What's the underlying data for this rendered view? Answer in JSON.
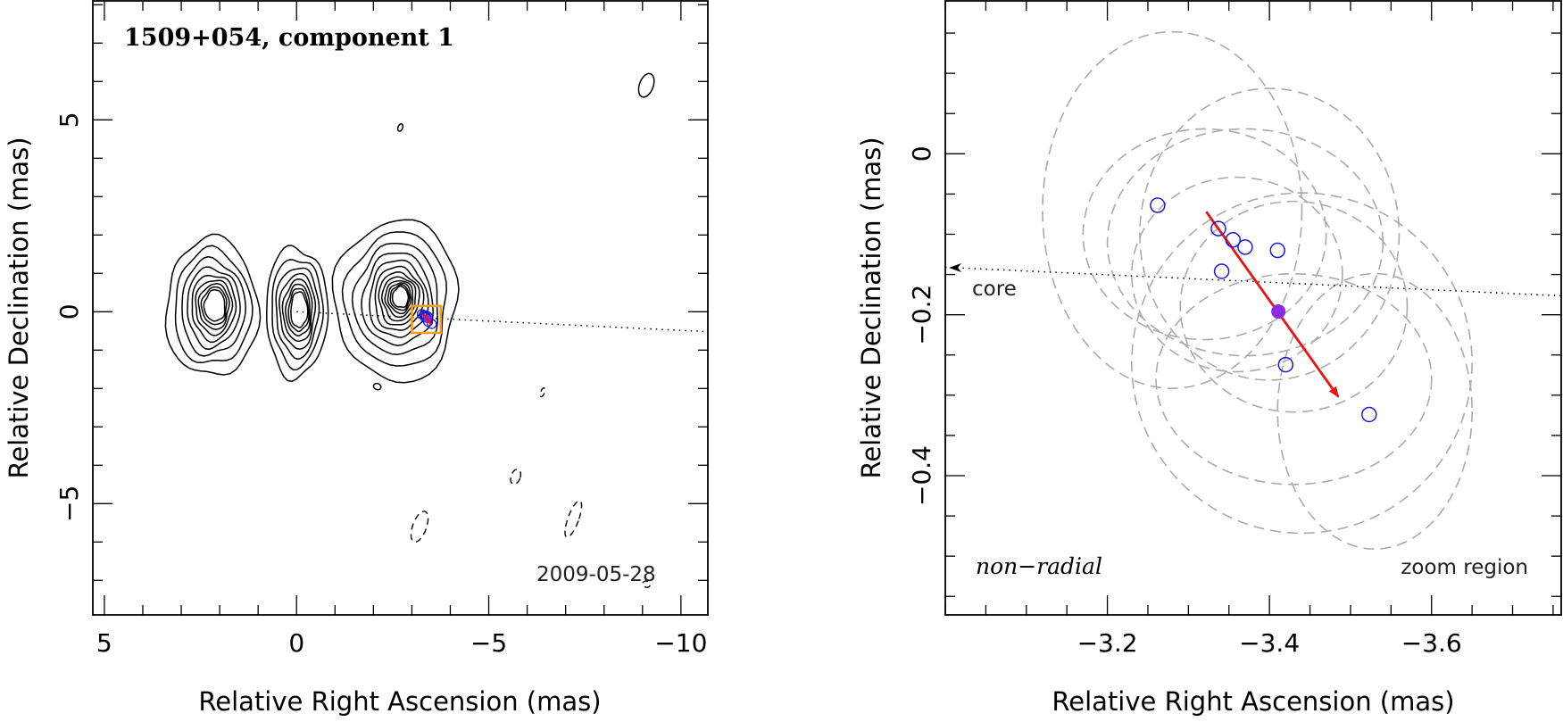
{
  "chart_data": [
    {
      "type": "contour",
      "title": "1509+054, component 1",
      "date": "2009-05-28",
      "xlabel": "Relative Right Ascension (mas)",
      "ylabel": "Relative Declination (mas)",
      "xlim": [
        5.3,
        -10.7
      ],
      "ylim": [
        -7.9,
        8.1
      ],
      "xticks": [
        5,
        0,
        -5,
        -10
      ],
      "xtick_labels": [
        "5",
        "0",
        "−5",
        "−10"
      ],
      "yticks": [
        -5,
        0,
        5
      ],
      "ytick_labels": [
        "−5",
        "0",
        "5"
      ],
      "x_minor_step": 1,
      "y_minor_step": 1,
      "contour_blobs": [
        {
          "name": "blob-left",
          "x": 2.2,
          "y": 0.1,
          "rx_max": 1.2,
          "ry_max": 1.8,
          "levels": 9
        },
        {
          "name": "blob-center",
          "x": 0.0,
          "y": 0.0,
          "rx_max": 0.8,
          "ry_max": 1.7,
          "levels": 8
        },
        {
          "name": "blob-right",
          "x": -2.6,
          "y": 0.3,
          "rx_max": 1.6,
          "ry_max": 2.1,
          "levels": 12
        }
      ],
      "small_contours": [
        {
          "x": -2.7,
          "y": 4.8,
          "rx": 0.06,
          "ry": 0.1,
          "dashed": false
        },
        {
          "x": -9.1,
          "y": 5.9,
          "rx": 0.18,
          "ry": 0.32,
          "dashed": false
        },
        {
          "x": -2.1,
          "y": -1.95,
          "rx": 0.1,
          "ry": 0.08,
          "dashed": false
        },
        {
          "x": -6.4,
          "y": -2.1,
          "rx": 0.05,
          "ry": 0.12,
          "dashed": true
        },
        {
          "x": -5.7,
          "y": -4.3,
          "rx": 0.12,
          "ry": 0.2,
          "dashed": true
        },
        {
          "x": -3.2,
          "y": -5.6,
          "rx": 0.18,
          "ry": 0.42,
          "dashed": true
        },
        {
          "x": -7.2,
          "y": -5.4,
          "rx": 0.14,
          "ry": 0.5,
          "dashed": true
        },
        {
          "x": -9.1,
          "y": -7.1,
          "rx": 0.1,
          "ry": 0.08,
          "dashed": true
        }
      ],
      "core_direction_line": {
        "from": [
          0,
          0
        ],
        "to": [
          -10.7,
          -0.52
        ]
      },
      "zoom_box": {
        "x": [
          -3.0,
          -3.75
        ],
        "y": [
          0.15,
          -0.55
        ]
      },
      "component_positions_mas": [
        {
          "x": -3.26,
          "y": -0.06
        },
        {
          "x": -3.33,
          "y": -0.09
        },
        {
          "x": -3.36,
          "y": -0.11
        },
        {
          "x": -3.37,
          "y": -0.12
        },
        {
          "x": -3.41,
          "y": -0.12
        },
        {
          "x": -3.34,
          "y": -0.15
        },
        {
          "x": -3.42,
          "y": -0.26
        },
        {
          "x": -3.52,
          "y": -0.32
        }
      ],
      "mean_position_mas": {
        "x": -3.41,
        "y": -0.2
      }
    },
    {
      "type": "scatter",
      "xlabel": "Relative Right Ascension (mas)",
      "ylabel": "Relative Declination (mas)",
      "xlim": [
        -3.0,
        -3.76
      ],
      "ylim": [
        -0.573,
        0.19
      ],
      "xticks": [
        -3.2,
        -3.4,
        -3.6
      ],
      "xtick_labels": [
        "−3.2",
        "−3.4",
        "−3.6"
      ],
      "yticks": [
        0,
        -0.2,
        -0.4
      ],
      "ytick_labels": [
        "0",
        "−0.2",
        "−0.4"
      ],
      "x_minor_step": 0.05,
      "y_minor_step": 0.05,
      "points": [
        {
          "x": -3.262,
          "y": -0.064
        },
        {
          "x": -3.337,
          "y": -0.093
        },
        {
          "x": -3.355,
          "y": -0.107
        },
        {
          "x": -3.37,
          "y": -0.116
        },
        {
          "x": -3.41,
          "y": -0.12
        },
        {
          "x": -3.341,
          "y": -0.146
        },
        {
          "x": -3.42,
          "y": -0.262
        },
        {
          "x": -3.523,
          "y": -0.324
        }
      ],
      "mean_point": {
        "x": -3.411,
        "y": -0.196
      },
      "uncertainty_ellipses": [
        {
          "x": -3.28,
          "y": -0.07,
          "rx": 0.16,
          "ry": 0.22
        },
        {
          "x": -3.32,
          "y": -0.1,
          "rx": 0.15,
          "ry": 0.13
        },
        {
          "x": -3.37,
          "y": -0.11,
          "rx": 0.17,
          "ry": 0.14
        },
        {
          "x": -3.4,
          "y": -0.1,
          "rx": 0.16,
          "ry": 0.18
        },
        {
          "x": -3.36,
          "y": -0.15,
          "rx": 0.13,
          "ry": 0.12
        },
        {
          "x": -3.43,
          "y": -0.19,
          "rx": 0.14,
          "ry": 0.13
        },
        {
          "x": -3.43,
          "y": -0.28,
          "rx": 0.17,
          "ry": 0.13
        },
        {
          "x": -3.53,
          "y": -0.32,
          "rx": 0.12,
          "ry": 0.17
        },
        {
          "x": -3.44,
          "y": -0.26,
          "rx": 0.21,
          "ry": 0.21
        }
      ],
      "motion_vector": {
        "from": {
          "x": -3.322,
          "y": -0.072
        },
        "to": {
          "x": -3.485,
          "y": -0.302
        }
      },
      "core_direction_line": {
        "from": {
          "x": -3.76,
          "y": -0.177
        },
        "to": {
          "x": -3.0,
          "y": -0.141
        }
      },
      "annotations": {
        "core": "core",
        "motion_type": "non−radial",
        "region": "zoom region"
      }
    }
  ],
  "colors": {
    "axes": "#000000",
    "contour": "#000000",
    "ellipse": "#aaaaaa",
    "component_marker": "#1a1adc",
    "mean_marker": "#8a2be2",
    "vector": "#ee1111",
    "zoom_box": "#f0a020"
  }
}
